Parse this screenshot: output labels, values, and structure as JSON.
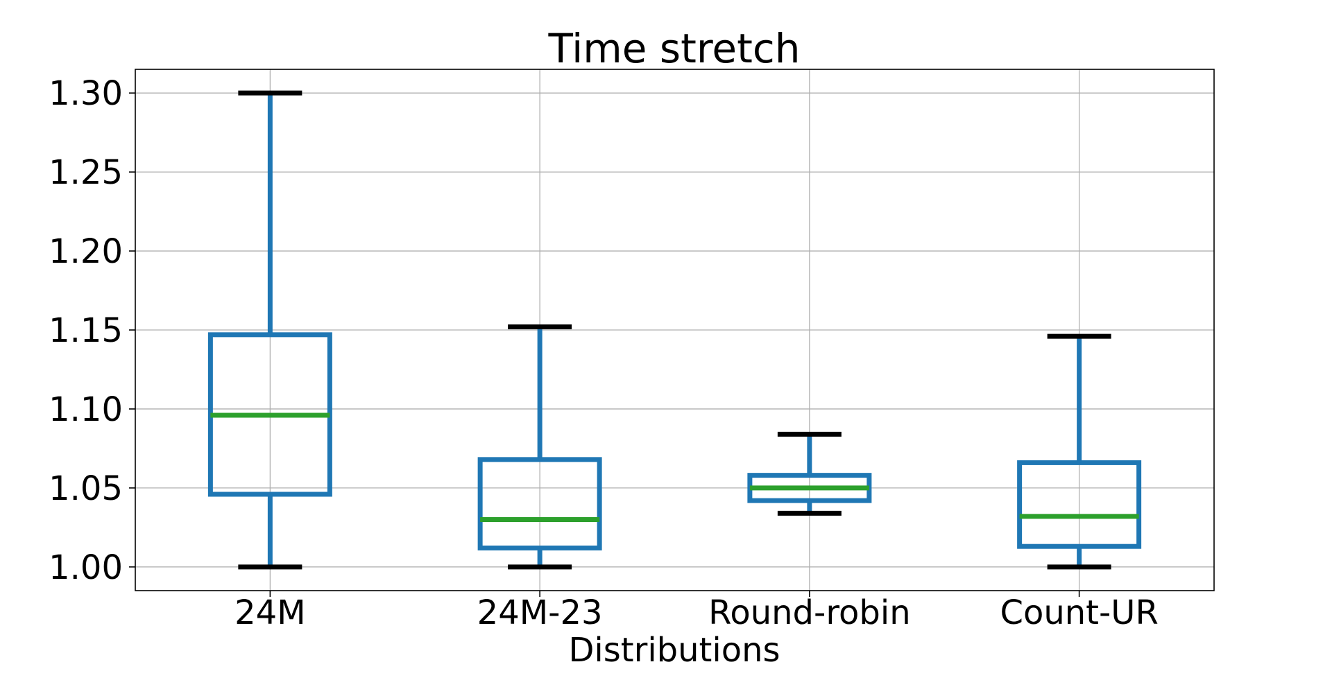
{
  "chart_data": {
    "type": "box",
    "title": "Time stretch",
    "xlabel": "Distributions",
    "ylabel": "",
    "ylim": [
      0.985,
      1.315
    ],
    "yticks": [
      1.0,
      1.05,
      1.1,
      1.15,
      1.2,
      1.25,
      1.3
    ],
    "ytick_labels": [
      "1.00",
      "1.05",
      "1.10",
      "1.15",
      "1.20",
      "1.25",
      "1.30"
    ],
    "grid": true,
    "categories": [
      "24M",
      "24M-23",
      "Round-robin",
      "Count-UR"
    ],
    "boxes": [
      {
        "name": "24M",
        "whisker_low": 1.0,
        "q1": 1.046,
        "median": 1.096,
        "q3": 1.147,
        "whisker_high": 1.3
      },
      {
        "name": "24M-23",
        "whisker_low": 1.0,
        "q1": 1.012,
        "median": 1.03,
        "q3": 1.068,
        "whisker_high": 1.152
      },
      {
        "name": "Round-robin",
        "whisker_low": 1.034,
        "q1": 1.042,
        "median": 1.05,
        "q3": 1.058,
        "whisker_high": 1.084
      },
      {
        "name": "Count-UR",
        "whisker_low": 1.0,
        "q1": 1.013,
        "median": 1.032,
        "q3": 1.066,
        "whisker_high": 1.146
      }
    ],
    "colors": {
      "box": "#1f77b4",
      "median": "#2ca02c",
      "cap": "#000000",
      "grid": "#b0b0b0"
    }
  }
}
